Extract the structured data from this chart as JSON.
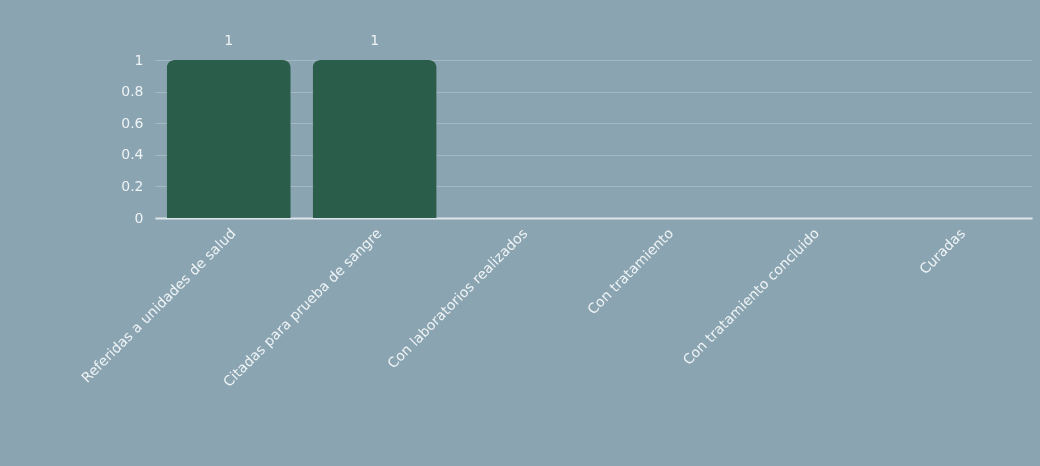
{
  "chart_data": {
    "type": "bar",
    "categories": [
      "Referidas a unidades de salud",
      "Citadas para prueba de sangre",
      "Con laboratorios realizados",
      "Con tratamiento",
      "Con tratamiento concluido",
      "Curadas"
    ],
    "values": [
      1,
      1,
      0,
      0,
      0,
      0
    ],
    "value_labels": [
      "1",
      "1",
      null,
      null,
      null,
      null
    ],
    "color": "#2b5e4a",
    "ylim": [
      0,
      1
    ],
    "yticks": [
      0,
      0.2,
      0.4,
      0.6,
      0.8,
      1
    ],
    "grid": "y"
  }
}
